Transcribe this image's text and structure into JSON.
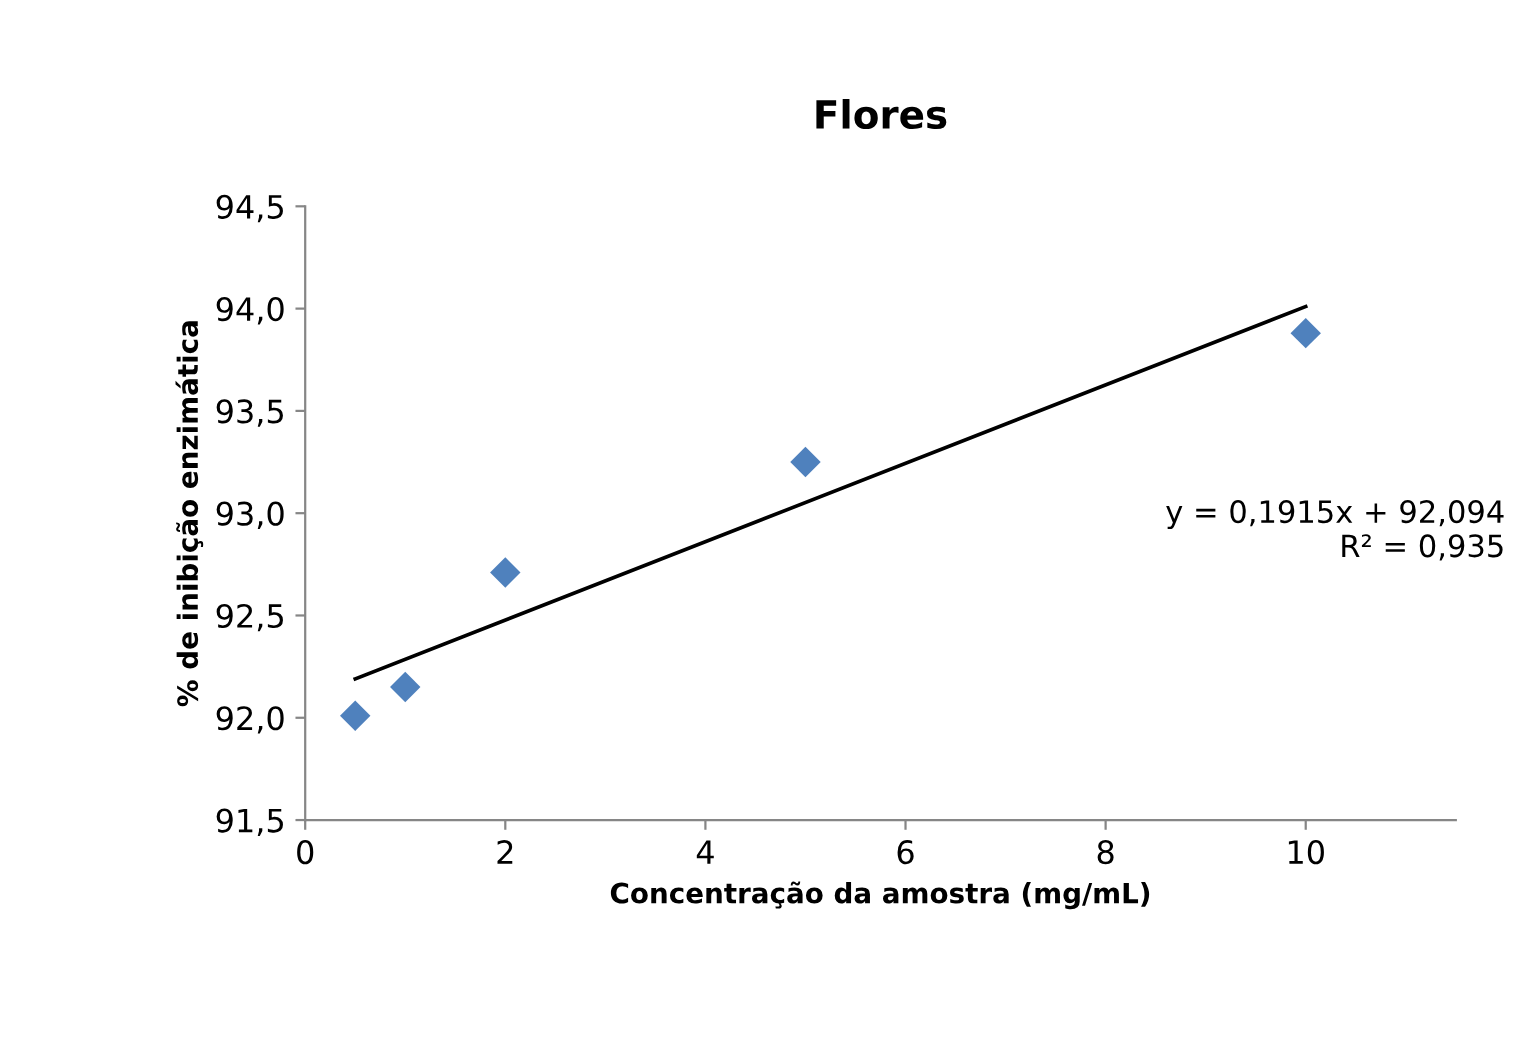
{
  "chart_data": {
    "type": "scatter",
    "title": "Flores",
    "xlabel": "Concentração da amostra (mg/mL)",
    "ylabel": "% de inibição enzimática",
    "series": [
      {
        "color": "#4f81bd",
        "marker": "diamond",
        "x": [
          0.5,
          1,
          2,
          5,
          10
        ],
        "values": [
          92.01,
          92.15,
          92.71,
          93.25,
          93.88
        ]
      },
      {
        "type": "line",
        "color": "#000000",
        "marker": "none",
        "x": [
          0.5,
          10
        ],
        "values": [
          92.19,
          94.01
        ]
      }
    ],
    "annotations": [
      "y = 0,1915x + 92,094\nR² = 0,935"
    ],
    "xlim": [
      0,
      11.5
    ],
    "xticks": [
      0,
      2,
      4,
      6,
      8,
      10
    ],
    "ylim": [
      91.5,
      94.5
    ],
    "yticks": [
      {
        "value": 91.5,
        "label": "91,5"
      },
      {
        "value": 92.0,
        "label": "92,0"
      },
      {
        "value": 92.5,
        "label": "92,5"
      },
      {
        "value": 93.0,
        "label": "93,0"
      },
      {
        "value": 93.5,
        "label": "93,5"
      },
      {
        "value": 94.0,
        "label": "94,0"
      },
      {
        "value": 94.5,
        "label": "94,5"
      }
    ],
    "grid": false,
    "legend": false
  }
}
